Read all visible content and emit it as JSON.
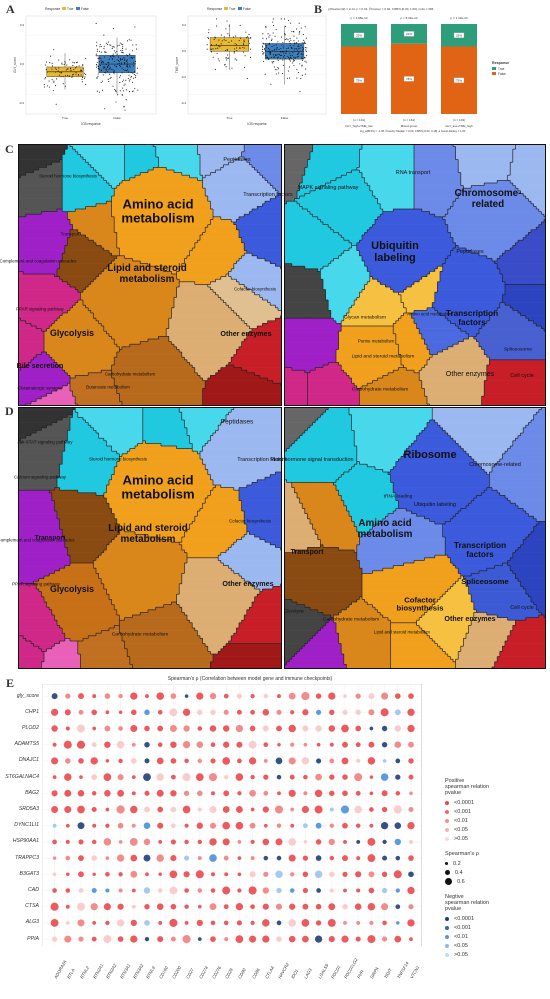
{
  "panel_letters": {
    "a": "A",
    "b": "B",
    "c": "C",
    "d": "D",
    "e": "E"
  },
  "panel_a": {
    "legend_title": "Response",
    "legend_items": [
      "True",
      "False"
    ],
    "colors": {
      "true": "#e8b830",
      "false": "#3c7fbf"
    },
    "plots": [
      {
        "subtitle": "Wilcoxon, p = 3.4e-10",
        "ylabel": "GLY_score",
        "xlabel": "ICB response",
        "categories": [
          "True",
          "False"
        ],
        "yticks": [
          "0.3",
          "0.0",
          "-0.3"
        ]
      },
      {
        "subtitle": "Wilcoxon, p = 0.0096",
        "ylabel": "TME_score",
        "xlabel": "ICB response",
        "categories": [
          "True",
          "False"
        ],
        "yticks": [
          "0.2",
          "0.0",
          "-0.2",
          "-0.4"
        ]
      }
    ]
  },
  "panel_b": {
    "subtitle": "χ²Pearson(2) = 2.14, p = 0.34, V̂Cramer = 0.02, CI95% [0.00, 1.00], nobs = 365",
    "subtitle_pvalues": [
      "p = 3.98e-10",
      "p = 5.33e-10",
      "p = 1.19e-10"
    ],
    "legend_title": "Response",
    "legend_items": [
      "True",
      "False"
    ],
    "colors": {
      "true": "#2e9e7a",
      "false": "#e06414"
    },
    "counts": [
      "(n = 101)",
      "(n = 161)",
      "(n = 103)"
    ],
    "categories": [
      "GLY_high+TME_low",
      "Mixed group",
      "GLY_low+TME_high"
    ],
    "bottom_caption": "log_e(BF01) = -4.48, r̂Cauchy Median = 0.00, CI95% [0.00, 0.18], a Gunel-Dickey = 1.00",
    "chart_data": {
      "type": "bar",
      "stacked": true,
      "categories": [
        "GLY_high+TME_low",
        "Mixed group",
        "GLY_low+TME_high"
      ],
      "series": [
        {
          "name": "True",
          "values": [
            25,
            22,
            25
          ]
        },
        {
          "name": "False",
          "values": [
            75,
            78,
            75
          ]
        }
      ],
      "bar_labels": {
        "true": [
          "25%",
          "22%",
          "25%"
        ],
        "false": [
          "75%",
          "78%",
          "75%"
        ]
      },
      "ylim": [
        0,
        100
      ]
    }
  },
  "voronoi_labels": {
    "c_left": [
      {
        "t": "Amino acid metabolism",
        "big": 1
      },
      {
        "t": "Lipid and steroid metabolism",
        "big": 1
      },
      {
        "t": "Glycolysis",
        "big": 1
      },
      {
        "t": "Other enzymes",
        "big": 1
      },
      {
        "t": "Bile secretion",
        "big": 1
      },
      {
        "t": "Peptidases"
      },
      {
        "t": "Transcription factors"
      },
      {
        "t": "Transport"
      },
      {
        "t": "Carbohydrate metabolism"
      },
      {
        "t": "Cofactor biosynthesis"
      },
      {
        "t": "PPAR signaling pathway"
      },
      {
        "t": "Complement and coagulation cascades"
      },
      {
        "t": "Steroid hormone biosynthesis"
      },
      {
        "t": "Glutamatergic synapse"
      },
      {
        "t": "Butanoate metabolism"
      }
    ],
    "c_right": [
      {
        "t": "Ubiquitin labeling",
        "big": 1
      },
      {
        "t": "Chromosome-related",
        "big": 1
      },
      {
        "t": "Transcription factors",
        "big": 1
      },
      {
        "t": "Peptidases"
      },
      {
        "t": "Spliceosome"
      },
      {
        "t": "Cell cycle"
      },
      {
        "t": "Other enzymes"
      },
      {
        "t": "RNA transport"
      },
      {
        "t": "MAPK signaling pathway"
      },
      {
        "t": "Glycan metabolism"
      },
      {
        "t": "Lipid and steroid metabolism"
      },
      {
        "t": "Carbohydrate metabolism"
      },
      {
        "t": "Purine metabolism"
      },
      {
        "t": "Amino acid metabolism"
      }
    ],
    "d_left": [
      {
        "t": "Amino acid metabolism",
        "big": 1
      },
      {
        "t": "Lipid and steroid metabolism",
        "big": 1
      },
      {
        "t": "Glycolysis",
        "big": 1
      },
      {
        "t": "Other enzymes",
        "big": 1
      },
      {
        "t": "Transport",
        "big": 1
      },
      {
        "t": "Peptidases"
      },
      {
        "t": "Transcription factors"
      },
      {
        "t": "Carbohydrate metabolism"
      },
      {
        "t": "Cofactor biosynthesis"
      },
      {
        "t": "Complement and coagulation cascades"
      },
      {
        "t": "PPAR signaling pathway"
      },
      {
        "t": "Jak-STAT signaling pathway"
      },
      {
        "t": "Calcium signaling pathway"
      },
      {
        "t": "Steroid hormone biosynthesis"
      }
    ],
    "d_right": [
      {
        "t": "Ribosome",
        "big": 1
      },
      {
        "t": "Amino acid metabolism",
        "big": 1
      },
      {
        "t": "Transcription factors",
        "big": 1
      },
      {
        "t": "Spliceosome",
        "big": 1
      },
      {
        "t": "Cofactor biosynthesis",
        "big": 1
      },
      {
        "t": "Transport",
        "big": 1
      },
      {
        "t": "Other enzymes",
        "big": 1
      },
      {
        "t": "Ubiquitin labeling"
      },
      {
        "t": "Chromosome-related"
      },
      {
        "t": "Cell cycle"
      },
      {
        "t": "Plant hormone signal transduction"
      },
      {
        "t": "tRNA loading"
      },
      {
        "t": "Carbohydrate metabolism"
      },
      {
        "t": "Glycolysis"
      },
      {
        "t": "Lipid and steroid metabolism"
      }
    ]
  },
  "panel_e": {
    "title": "Spearman's ρ (Correlation between model gene and immune checkpoints)",
    "rows": [
      "gly_score",
      "CHP1",
      "PLOD2",
      "ADAMTS5",
      "DNAJC1",
      "ST6GALNAC4",
      "BAG2",
      "SRD5A3",
      "DYNC1LI1",
      "HSP90AA1",
      "TRAPPC3",
      "B3GAT3",
      "CAD",
      "CTSA",
      "ALG3",
      "PPIA"
    ],
    "cols": [
      "ADORA2A",
      "BTLA",
      "BTNL2",
      "BTN2A1",
      "BTN2A2",
      "BTN3A1",
      "BTN3A2",
      "BTNL9",
      "CD160",
      "CD200",
      "CD27",
      "CD274",
      "CD276",
      "CD28",
      "CD80",
      "CD86",
      "CTLA4",
      "HAVCR2",
      "IDO1",
      "LAG3",
      "LGALS9",
      "PDCD1",
      "PDCD1LG2",
      "PVR",
      "SIRPA",
      "TIGIT",
      "TNFSF14",
      "VTCN1"
    ],
    "legend": {
      "pos_title": "Positive\nspearman relation\npvalue",
      "pos_items": [
        "<0.0001",
        "<0.001",
        "<0.01",
        "<0.05",
        ">0.05"
      ],
      "rho_title": "Spearman's ρ",
      "rho_items": [
        "0.2",
        "0.4",
        "0.6"
      ],
      "neg_title": "Negtive\nspearman relation\npvalue",
      "neg_items": [
        "<0.0001",
        "<0.001",
        "<0.01",
        "<0.05",
        ">0.05"
      ]
    },
    "colors": {
      "pos": "#e8484c",
      "neg": "#1f3e78"
    }
  }
}
